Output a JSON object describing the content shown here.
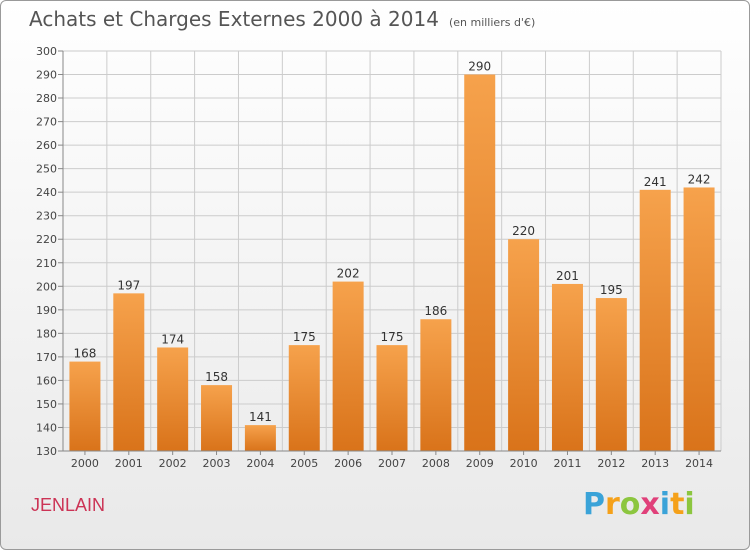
{
  "title": "Achats et Charges Externes 2000 à 2014",
  "unit": "(en milliers d'€)",
  "commune": "JENLAIN",
  "logo": {
    "letters": [
      "P",
      "r",
      "o",
      "x",
      "i",
      "t",
      "i"
    ],
    "colors": [
      "#3aa3d8",
      "#f5a11a",
      "#8cc63f",
      "#e0407a",
      "#3aa3d8",
      "#f5a11a",
      "#8cc63f"
    ]
  },
  "colors": {
    "bar_top": "#f6a24c",
    "bar_bottom": "#d9731a",
    "grid": "#cccccc",
    "title": "#555555",
    "commune": "#cc3355"
  },
  "chart_data": {
    "type": "bar",
    "title": "Achats et Charges Externes 2000 à 2014",
    "categories": [
      "2000",
      "2001",
      "2002",
      "2003",
      "2004",
      "2005",
      "2006",
      "2007",
      "2008",
      "2009",
      "2010",
      "2011",
      "2012",
      "2013",
      "2014"
    ],
    "values": [
      168,
      197,
      174,
      158,
      141,
      175,
      202,
      175,
      186,
      290,
      220,
      201,
      195,
      241,
      242
    ],
    "ylim": [
      130,
      300
    ],
    "yticks": [
      130,
      140,
      150,
      160,
      170,
      180,
      190,
      200,
      210,
      220,
      230,
      240,
      250,
      260,
      270,
      280,
      290,
      300
    ],
    "grid": true
  }
}
